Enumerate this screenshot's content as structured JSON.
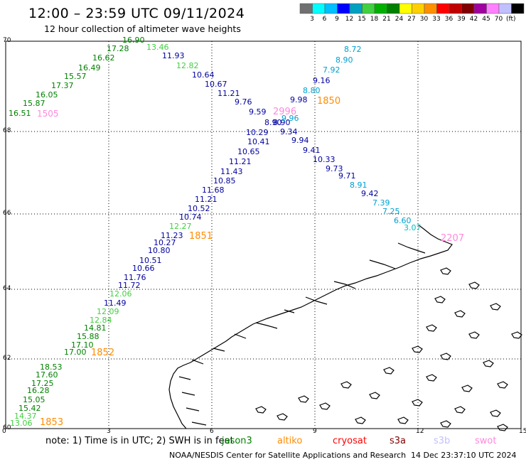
{
  "header": {
    "title": "12:00 – 23:59 UTC 09/11/2024",
    "subtitle": "12 hour collection of altimeter wave heights"
  },
  "color_scale": {
    "colors": [
      "#707070",
      "#00ffff",
      "#00c0ff",
      "#0000ff",
      "#00a0c0",
      "#40d040",
      "#00b000",
      "#008000",
      "#ffff00",
      "#ffd000",
      "#ff9000",
      "#ff0000",
      "#c00000",
      "#800000",
      "#a000a0",
      "#ff80ff",
      "#c0c0ff",
      "#000000"
    ],
    "labels": [
      "3",
      "6",
      "9",
      "12",
      "15",
      "18",
      "21",
      "24",
      "27",
      "30",
      "33",
      "36",
      "39",
      "42",
      "45",
      "70"
    ],
    "unit": "(ft)"
  },
  "axes": {
    "y_labels": [
      "70",
      "68",
      "66",
      "64",
      "62",
      "60"
    ],
    "x_labels": [
      "0",
      "3",
      "6",
      "9",
      "12",
      "15"
    ]
  },
  "tracks": [
    {
      "id": "1505",
      "color": "#ff88dd",
      "labels": [
        "16.51",
        "15.87",
        "16.05",
        "17.37",
        "15.57",
        "16.49",
        "16.62",
        "17.28",
        "16.90",
        "13.46",
        "11.93",
        "12.82",
        "10.64",
        "10.67",
        "11.21",
        "9.76",
        "9.59",
        "8.90",
        "8.90",
        "10.29",
        "10.41",
        "10.65",
        "11.21",
        "11.43",
        "10.85",
        "11.68",
        "11.21",
        "10.52",
        "10.74",
        "12.27",
        "11.23",
        "10.27",
        "10.80",
        "10.51",
        "10.66",
        "11.76",
        "11.72",
        "12.06",
        "11.49",
        "12.09",
        "12.84",
        "14.81",
        "15.88",
        "17.10",
        "17.00"
      ]
    },
    {
      "id": "1850",
      "color": "#ff8c00",
      "labels": [
        "8.72",
        "8.90",
        "7.92",
        "9.16",
        "8.80",
        "9.98",
        "9.96",
        "9.34",
        "9.94",
        "9.41",
        "10.33",
        "9.73",
        "9.71",
        "8.91",
        "9.42",
        "7.39",
        "7.25",
        "6.60",
        "3.07"
      ]
    },
    {
      "id": "1851",
      "color": "#ff8c00",
      "labels": []
    },
    {
      "id": "1852",
      "color": "#ff8c00",
      "labels": []
    },
    {
      "id": "1853",
      "color": "#ff8c00",
      "labels": [
        "18.53",
        "17.60",
        "17.25",
        "16.28",
        "15.05",
        "15.42",
        "14.37",
        "13.06"
      ]
    },
    {
      "id": "2996",
      "color": "#ff88dd",
      "labels": []
    },
    {
      "id": "2207",
      "color": "#ff88dd",
      "labels": []
    }
  ],
  "note": "note: 1) Time is in UTC; 2) SWH is in feet",
  "legend": [
    {
      "name": "jason3",
      "color": "#008000"
    },
    {
      "name": "altiko",
      "color": "#ff8c00"
    },
    {
      "name": "cryosat",
      "color": "#ff0000"
    },
    {
      "name": "s3a",
      "color": "#800000"
    },
    {
      "name": "s3b",
      "color": "#c0c0ff"
    },
    {
      "name": "swot",
      "color": "#ff88dd"
    }
  ],
  "footer": {
    "credit": "NOAA/NESDIS Center for Satellite Applications and Research",
    "timestamp": "14 Dec 23:37:10 UTC 2024"
  }
}
